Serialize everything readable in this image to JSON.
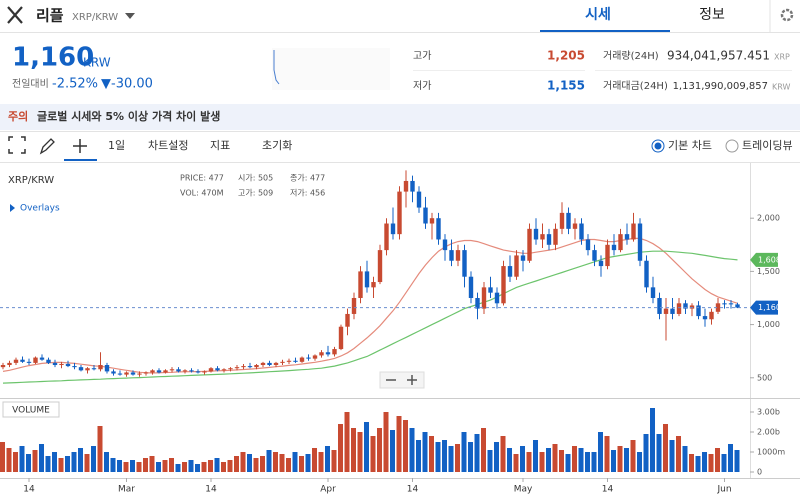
{
  "header": {
    "name": "리플",
    "pair": "XRP/KRW",
    "tabs": [
      "시세",
      "정보"
    ]
  },
  "ticker": {
    "price": "1,160",
    "unit": "KRW",
    "change_label": "전일대비",
    "change_rate": "-2.52%",
    "change_price": "▼-30.00",
    "high_label": "고가",
    "high": "1,205",
    "low_label": "저가",
    "low": "1,155",
    "volume_label": "거래량(24H)",
    "volume": "934,041,957.451",
    "volume_unit": "XRP",
    "value_label": "거래대금(24H)",
    "value": "1,131,990,009,857",
    "value_unit": "KRW"
  },
  "notice": {
    "tag": "주의",
    "text": "글로벌 시세와 5% 이상 가격 차이 발생"
  },
  "toolbar": {
    "interval": "1일",
    "items": [
      "차트설정",
      "지표",
      "초기화"
    ],
    "modes": [
      "기본 차트",
      "트레이딩뷰"
    ]
  },
  "chart_data": {
    "type": "candlestick",
    "title": "XRP/KRW",
    "overlays": "Overlays",
    "info": [
      "PRICE: 477",
      "시가: 505",
      "종가: 477",
      "VOL: 470M",
      "고가: 509",
      "저가: 456"
    ],
    "up_color": "#c84a31",
    "down_color": "#1261c4",
    "categories": [
      null,
      null,
      null,
      null,
      "14",
      null,
      null,
      null,
      null,
      null,
      null,
      null,
      null,
      null,
      null,
      null,
      null,
      null,
      null,
      "Mar",
      null,
      null,
      null,
      null,
      null,
      null,
      null,
      null,
      null,
      null,
      null,
      null,
      "14",
      null,
      null,
      null,
      null,
      null,
      null,
      null,
      null,
      null,
      null,
      null,
      null,
      null,
      null,
      null,
      null,
      null,
      "Apr",
      null,
      null,
      null,
      null,
      null,
      null,
      null,
      null,
      null,
      null,
      null,
      null,
      "14",
      null,
      null,
      null,
      null,
      null,
      null,
      null,
      null,
      null,
      null,
      null,
      null,
      null,
      null,
      null,
      null,
      "May",
      null,
      null,
      null,
      null,
      null,
      null,
      null,
      null,
      null,
      null,
      null,
      null,
      "14",
      null,
      null,
      null,
      null,
      null,
      null,
      null,
      null,
      null,
      null,
      null,
      null,
      null,
      null,
      null,
      null,
      null,
      "Jun",
      null,
      null
    ],
    "candles": [
      [
        600,
        640,
        580,
        620
      ],
      [
        620,
        660,
        600,
        640
      ],
      [
        640,
        690,
        620,
        670
      ],
      [
        670,
        700,
        640,
        650
      ],
      [
        650,
        680,
        620,
        640
      ],
      [
        640,
        700,
        630,
        690
      ],
      [
        690,
        720,
        660,
        670
      ],
      [
        670,
        690,
        630,
        640
      ],
      [
        640,
        670,
        600,
        620
      ],
      [
        620,
        650,
        590,
        630
      ],
      [
        630,
        660,
        600,
        610
      ],
      [
        610,
        640,
        580,
        600
      ],
      [
        600,
        620,
        560,
        570
      ],
      [
        570,
        600,
        540,
        590
      ],
      [
        590,
        620,
        570,
        580
      ],
      [
        580,
        740,
        560,
        620
      ],
      [
        620,
        640,
        540,
        560
      ],
      [
        560,
        580,
        520,
        540
      ],
      [
        540,
        570,
        520,
        530
      ],
      [
        530,
        560,
        510,
        550
      ],
      [
        550,
        570,
        520,
        530
      ],
      [
        530,
        560,
        510,
        540
      ],
      [
        540,
        560,
        520,
        550
      ],
      [
        550,
        580,
        530,
        570
      ],
      [
        570,
        590,
        540,
        550
      ],
      [
        550,
        580,
        540,
        570
      ],
      [
        570,
        600,
        550,
        580
      ],
      [
        580,
        600,
        550,
        560
      ],
      [
        560,
        580,
        540,
        570
      ],
      [
        570,
        590,
        550,
        560
      ],
      [
        560,
        580,
        540,
        550
      ],
      [
        550,
        570,
        530,
        560
      ],
      [
        560,
        600,
        550,
        590
      ],
      [
        590,
        610,
        560,
        570
      ],
      [
        570,
        590,
        550,
        580
      ],
      [
        580,
        600,
        560,
        590
      ],
      [
        590,
        620,
        570,
        600
      ],
      [
        600,
        630,
        580,
        610
      ],
      [
        610,
        640,
        590,
        600
      ],
      [
        600,
        630,
        580,
        620
      ],
      [
        620,
        650,
        600,
        640
      ],
      [
        640,
        660,
        610,
        620
      ],
      [
        620,
        650,
        600,
        640
      ],
      [
        640,
        670,
        620,
        650
      ],
      [
        650,
        680,
        630,
        660
      ],
      [
        660,
        690,
        640,
        650
      ],
      [
        650,
        700,
        640,
        690
      ],
      [
        690,
        720,
        660,
        680
      ],
      [
        680,
        720,
        660,
        710
      ],
      [
        710,
        760,
        690,
        740
      ],
      [
        740,
        800,
        700,
        720
      ],
      [
        720,
        790,
        700,
        770
      ],
      [
        770,
        1000,
        760,
        980
      ],
      [
        980,
        1150,
        900,
        1100
      ],
      [
        1100,
        1300,
        1050,
        1250
      ],
      [
        1250,
        1550,
        1200,
        1500
      ],
      [
        1500,
        1600,
        1300,
        1350
      ],
      [
        1350,
        1450,
        1250,
        1400
      ],
      [
        1400,
        1750,
        1380,
        1700
      ],
      [
        1700,
        2000,
        1650,
        1950
      ],
      [
        1950,
        2100,
        1800,
        1850
      ],
      [
        1850,
        2300,
        1800,
        2250
      ],
      [
        2250,
        2450,
        2100,
        2350
      ],
      [
        2350,
        2400,
        2150,
        2250
      ],
      [
        2250,
        2300,
        2050,
        2100
      ],
      [
        2100,
        2200,
        1900,
        1950
      ],
      [
        1950,
        2050,
        1800,
        2000
      ],
      [
        2000,
        2050,
        1750,
        1800
      ],
      [
        1800,
        1850,
        1600,
        1700
      ],
      [
        1700,
        1800,
        1550,
        1600
      ],
      [
        1600,
        1750,
        1550,
        1700
      ],
      [
        1700,
        1750,
        1350,
        1450
      ],
      [
        1450,
        1500,
        1200,
        1250
      ],
      [
        1250,
        1300,
        1050,
        1150
      ],
      [
        1150,
        1400,
        1100,
        1350
      ],
      [
        1350,
        1450,
        1250,
        1300
      ],
      [
        1300,
        1350,
        1150,
        1200
      ],
      [
        1200,
        1600,
        1180,
        1550
      ],
      [
        1550,
        1650,
        1400,
        1450
      ],
      [
        1450,
        1700,
        1420,
        1650
      ],
      [
        1650,
        1700,
        1500,
        1600
      ],
      [
        1600,
        1950,
        1580,
        1900
      ],
      [
        1900,
        2000,
        1750,
        1800
      ],
      [
        1800,
        1950,
        1720,
        1850
      ],
      [
        1850,
        1900,
        1700,
        1750
      ],
      [
        1750,
        1950,
        1700,
        1900
      ],
      [
        1900,
        2150,
        1850,
        2050
      ],
      [
        2050,
        2100,
        1850,
        1900
      ],
      [
        1900,
        2000,
        1800,
        1950
      ],
      [
        1950,
        2000,
        1750,
        1800
      ],
      [
        1800,
        1850,
        1650,
        1700
      ],
      [
        1700,
        1750,
        1550,
        1600
      ],
      [
        1600,
        1650,
        1450,
        1550
      ],
      [
        1550,
        1800,
        1520,
        1750
      ],
      [
        1750,
        1850,
        1650,
        1700
      ],
      [
        1700,
        1900,
        1680,
        1850
      ],
      [
        1850,
        1950,
        1750,
        1800
      ],
      [
        1800,
        2050,
        1780,
        1950
      ],
      [
        1950,
        2000,
        1550,
        1600
      ],
      [
        1600,
        1650,
        1300,
        1350
      ],
      [
        1350,
        1450,
        1200,
        1250
      ],
      [
        1250,
        1300,
        1050,
        1100
      ],
      [
        1100,
        1250,
        850,
        1150
      ],
      [
        1150,
        1250,
        1050,
        1100
      ],
      [
        1100,
        1250,
        1080,
        1200
      ],
      [
        1200,
        1230,
        1100,
        1150
      ],
      [
        1150,
        1200,
        1080,
        1180
      ],
      [
        1180,
        1220,
        1050,
        1080
      ],
      [
        1080,
        1150,
        980,
        1050
      ],
      [
        1050,
        1150,
        1000,
        1120
      ],
      [
        1120,
        1250,
        1100,
        1200
      ],
      [
        1200,
        1230,
        1150,
        1190
      ],
      [
        1200,
        1230,
        1150,
        1190
      ],
      [
        1190,
        1205,
        1155,
        1160
      ]
    ],
    "volumes": [
      1500000000.0,
      1200000000.0,
      1000000000.0,
      1300000000.0,
      900000000.0,
      1100000000.0,
      1400000000.0,
      800000000.0,
      1000000000.0,
      700000000.0,
      800000000.0,
      1000000000.0,
      1200000000.0,
      900000000.0,
      1300000000.0,
      2300000000.0,
      1000000000.0,
      700000000.0,
      600000000.0,
      500000000.0,
      600000000.0,
      500000000.0,
      700000000.0,
      800000000.0,
      500000000.0,
      600000000.0,
      700000000.0,
      400000000.0,
      500000000.0,
      600000000.0,
      400000000.0,
      500000000.0,
      600000000.0,
      700000000.0,
      500000000.0,
      600000000.0,
      800000000.0,
      1000000000.0,
      900000000.0,
      700000000.0,
      800000000.0,
      1100000000.0,
      1000000000.0,
      900000000.0,
      700000000.0,
      1000000000.0,
      800000000.0,
      900000000.0,
      1200000000.0,
      1000000000.0,
      1300000000.0,
      1100000000.0,
      2400000000.0,
      3000000000.0,
      2200000000.0,
      2000000000.0,
      2500000000.0,
      1800000000.0,
      2200000000.0,
      3000000000.0,
      2100000000.0,
      2800000000.0,
      2600000000.0,
      2200000000.0,
      1600000000.0,
      2000000000.0,
      1800000000.0,
      1500000000.0,
      1600000000.0,
      1300000000.0,
      1400000000.0,
      2000000000.0,
      1500000000.0,
      1900000000.0,
      2200000000.0,
      1100000000.0,
      1500000000.0,
      1800000000.0,
      1200000000.0,
      900000000.0,
      1300000000.0,
      1000000000.0,
      1600000000.0,
      1000000000.0,
      1200000000.0,
      1400000000.0,
      1100000000.0,
      900000000.0,
      1300000000.0,
      1200000000.0,
      1000000000.0,
      1000000000.0,
      2000000000.0,
      1800000000.0,
      1100000000.0,
      1300000000.0,
      1200000000.0,
      1600000000.0,
      1000000000.0,
      1900000000.0,
      3200000000.0,
      1900000000.0,
      2400000000.0,
      1600000000.0,
      1800000000.0,
      1300000000.0,
      900000000.0,
      800000000.0,
      1000000000.0,
      900000000.0,
      1200000000.0,
      900000000.0,
      1400000000.0,
      1100000000.0
    ],
    "moving_averages": [
      {
        "color": "#e58b7c",
        "values": [
          560,
          570,
          585,
          600,
          615,
          625,
          635,
          640,
          645,
          645,
          640,
          635,
          628,
          620,
          612,
          608,
          600,
          590,
          580,
          570,
          560,
          552,
          548,
          545,
          547,
          550,
          552,
          555,
          556,
          558,
          558,
          560,
          563,
          566,
          568,
          570,
          574,
          578,
          582,
          586,
          592,
          598,
          604,
          610,
          616,
          622,
          630,
          638,
          646,
          656,
          668,
          682,
          705,
          735,
          775,
          825,
          875,
          930,
          990,
          1060,
          1130,
          1210,
          1300,
          1390,
          1480,
          1560,
          1630,
          1690,
          1730,
          1760,
          1780,
          1790,
          1790,
          1780,
          1760,
          1740,
          1720,
          1700,
          1690,
          1680,
          1670,
          1670,
          1680,
          1690,
          1700,
          1710,
          1730,
          1750,
          1770,
          1790,
          1800,
          1800,
          1790,
          1780,
          1780,
          1790,
          1800,
          1810,
          1810,
          1790,
          1760,
          1720,
          1670,
          1610,
          1550,
          1490,
          1430,
          1380,
          1330,
          1290,
          1260,
          1240,
          1220,
          1200
        ]
      },
      {
        "color": "#6cc46c",
        "values": [
          450,
          452,
          455,
          458,
          460,
          462,
          465,
          468,
          470,
          472,
          475,
          477,
          480,
          482,
          485,
          487,
          490,
          492,
          495,
          497,
          500,
          502,
          505,
          507,
          510,
          512,
          515,
          517,
          520,
          522,
          525,
          527,
          530,
          532,
          535,
          537,
          540,
          543,
          546,
          550,
          553,
          557,
          560,
          564,
          568,
          572,
          576,
          580,
          585,
          590,
          600,
          610,
          625,
          640,
          660,
          680,
          700,
          730,
          760,
          790,
          820,
          850,
          880,
          910,
          940,
          970,
          1000,
          1030,
          1060,
          1090,
          1120,
          1150,
          1170,
          1190,
          1210,
          1230,
          1260,
          1290,
          1320,
          1350,
          1370,
          1390,
          1410,
          1430,
          1450,
          1470,
          1490,
          1510,
          1530,
          1550,
          1570,
          1590,
          1610,
          1630,
          1640,
          1650,
          1660,
          1670,
          1680,
          1685,
          1690,
          1690,
          1690,
          1685,
          1680,
          1675,
          1670,
          1660,
          1650,
          1640,
          1630,
          1620,
          1615,
          1608
        ]
      }
    ],
    "price_tags": [
      {
        "value": 1608,
        "label": "1,608",
        "color": "#5cb85c"
      },
      {
        "value": 1160,
        "label": "1,160",
        "color": "#1261c4"
      }
    ],
    "ylim": [
      310,
      2500
    ],
    "yticks": [
      {
        "value": 2000,
        "label": "2,000"
      },
      {
        "value": 1500,
        "label": "1,500"
      },
      {
        "value": 1000,
        "label": "1,000"
      },
      500
    ],
    "volume_label": "VOLUME",
    "vol_ylim": [
      0,
      3600000000.0
    ],
    "vol_yticks": [
      {
        "value": 3000000000.0,
        "label": "3.00b"
      },
      {
        "value": 2000000000.0,
        "label": "2.00b"
      },
      {
        "value": 1000000000.0,
        "label": "1000m"
      },
      0
    ]
  }
}
